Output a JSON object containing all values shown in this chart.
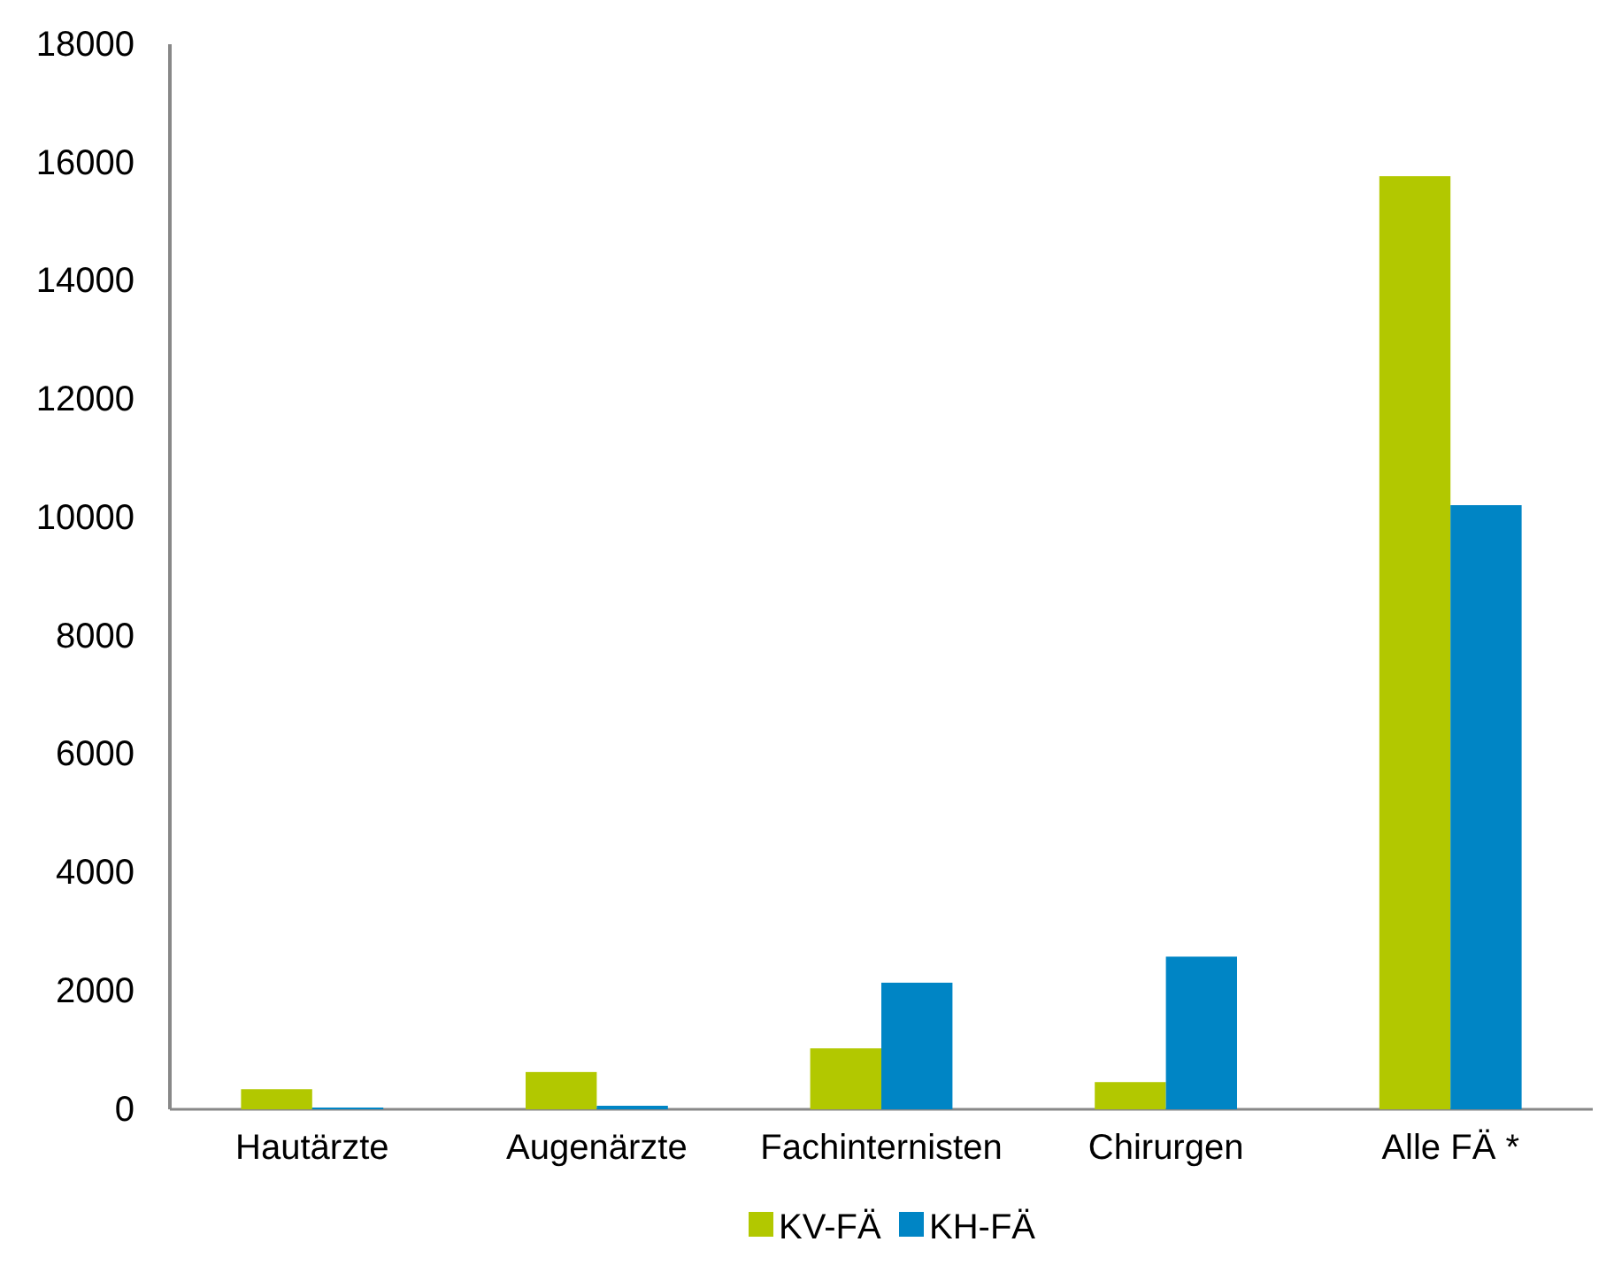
{
  "chart_data": {
    "type": "bar",
    "categories": [
      "Hautärzte",
      "Augenärzte",
      "Fachinternisten",
      "Chirurgen",
      "Alle FÄ *"
    ],
    "series": [
      {
        "name": "KV-FÄ",
        "color": "#b2c800",
        "values": [
          340,
          630,
          1030,
          460,
          15770
        ]
      },
      {
        "name": "KH-FÄ",
        "color": "#0085c5",
        "values": [
          30,
          60,
          2140,
          2580,
          10210
        ]
      }
    ],
    "ylim": [
      0,
      18000
    ],
    "yticks": [
      0,
      2000,
      4000,
      6000,
      8000,
      10000,
      12000,
      14000,
      16000,
      18000
    ],
    "grid": false,
    "legend": "bottom"
  }
}
